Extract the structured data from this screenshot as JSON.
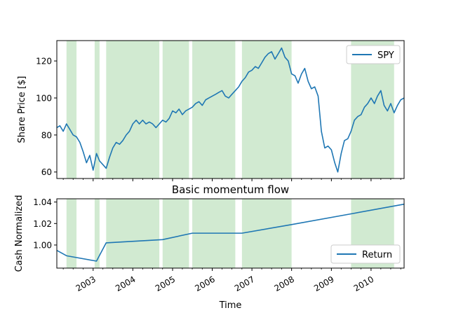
{
  "chart_data": [
    {
      "type": "line",
      "title": "",
      "xlabel": "",
      "ylabel": "Share Price [$]",
      "xlim": [
        "2002-02-01",
        "2010-11-01"
      ],
      "ylim": [
        56.5,
        131
      ],
      "yticks": [
        60,
        80,
        100,
        120
      ],
      "grid": false,
      "legend_position": "top-right",
      "shaded_regions": [
        [
          "2002-05-01",
          "2002-08-01"
        ],
        [
          "2003-01-15",
          "2003-03-01"
        ],
        [
          "2003-05-01",
          "2004-09-01"
        ],
        [
          "2004-10-01",
          "2005-06-01"
        ],
        [
          "2005-07-01",
          "2006-08-01"
        ],
        [
          "2006-10-01",
          "2008-01-01"
        ],
        [
          "2009-07-01",
          "2010-08-01"
        ]
      ],
      "series": [
        {
          "name": "SPY",
          "color": "#1f77b4",
          "points": [
            [
              "2002-02-01",
              84
            ],
            [
              "2002-03-01",
              85
            ],
            [
              "2002-04-01",
              82
            ],
            [
              "2002-05-01",
              86
            ],
            [
              "2002-06-01",
              83
            ],
            [
              "2002-07-01",
              80
            ],
            [
              "2002-08-01",
              79
            ],
            [
              "2002-09-01",
              76
            ],
            [
              "2002-10-01",
              71
            ],
            [
              "2002-11-01",
              65
            ],
            [
              "2002-12-01",
              69
            ],
            [
              "2003-01-01",
              61
            ],
            [
              "2003-02-01",
              70
            ],
            [
              "2003-03-01",
              66
            ],
            [
              "2003-04-01",
              64
            ],
            [
              "2003-05-01",
              62
            ],
            [
              "2003-06-01",
              68
            ],
            [
              "2003-07-01",
              73
            ],
            [
              "2003-08-01",
              76
            ],
            [
              "2003-09-01",
              75
            ],
            [
              "2003-10-01",
              77
            ],
            [
              "2003-11-01",
              80
            ],
            [
              "2003-12-01",
              82
            ],
            [
              "2004-01-01",
              86
            ],
            [
              "2004-02-01",
              88
            ],
            [
              "2004-03-01",
              86
            ],
            [
              "2004-04-01",
              88
            ],
            [
              "2004-05-01",
              86
            ],
            [
              "2004-06-01",
              87
            ],
            [
              "2004-07-01",
              86
            ],
            [
              "2004-08-01",
              84
            ],
            [
              "2004-09-01",
              86
            ],
            [
              "2004-10-01",
              88
            ],
            [
              "2004-11-01",
              87
            ],
            [
              "2004-12-01",
              89
            ],
            [
              "2005-01-01",
              93
            ],
            [
              "2005-02-01",
              92
            ],
            [
              "2005-03-01",
              94
            ],
            [
              "2005-04-01",
              91
            ],
            [
              "2005-05-01",
              93
            ],
            [
              "2005-06-01",
              94
            ],
            [
              "2005-07-01",
              95
            ],
            [
              "2005-08-01",
              97
            ],
            [
              "2005-09-01",
              98
            ],
            [
              "2005-10-01",
              96
            ],
            [
              "2005-11-01",
              99
            ],
            [
              "2005-12-01",
              100
            ],
            [
              "2006-01-01",
              101
            ],
            [
              "2006-02-01",
              102
            ],
            [
              "2006-03-01",
              103
            ],
            [
              "2006-04-01",
              104
            ],
            [
              "2006-05-01",
              101
            ],
            [
              "2006-06-01",
              100
            ],
            [
              "2006-07-01",
              102
            ],
            [
              "2006-08-01",
              104
            ],
            [
              "2006-09-01",
              106
            ],
            [
              "2006-10-01",
              109
            ],
            [
              "2006-11-01",
              111
            ],
            [
              "2006-12-01",
              114
            ],
            [
              "2007-01-01",
              115
            ],
            [
              "2007-02-01",
              117
            ],
            [
              "2007-03-01",
              116
            ],
            [
              "2007-04-01",
              119
            ],
            [
              "2007-05-01",
              122
            ],
            [
              "2007-06-01",
              124
            ],
            [
              "2007-07-01",
              125
            ],
            [
              "2007-08-01",
              121
            ],
            [
              "2007-09-01",
              124
            ],
            [
              "2007-10-01",
              127
            ],
            [
              "2007-11-01",
              122
            ],
            [
              "2007-12-01",
              120
            ],
            [
              "2008-01-01",
              113
            ],
            [
              "2008-02-01",
              112
            ],
            [
              "2008-03-01",
              108
            ],
            [
              "2008-04-01",
              113
            ],
            [
              "2008-05-01",
              116
            ],
            [
              "2008-06-01",
              109
            ],
            [
              "2008-07-01",
              105
            ],
            [
              "2008-08-01",
              106
            ],
            [
              "2008-09-01",
              101
            ],
            [
              "2008-10-01",
              82
            ],
            [
              "2008-11-01",
              73
            ],
            [
              "2008-12-01",
              74
            ],
            [
              "2009-01-01",
              72
            ],
            [
              "2009-02-01",
              65
            ],
            [
              "2009-03-01",
              60
            ],
            [
              "2009-04-01",
              70
            ],
            [
              "2009-05-01",
              77
            ],
            [
              "2009-06-01",
              78
            ],
            [
              "2009-07-01",
              82
            ],
            [
              "2009-08-01",
              88
            ],
            [
              "2009-09-01",
              90
            ],
            [
              "2009-10-01",
              91
            ],
            [
              "2009-11-01",
              95
            ],
            [
              "2009-12-01",
              97
            ],
            [
              "2010-01-01",
              100
            ],
            [
              "2010-02-01",
              97
            ],
            [
              "2010-03-01",
              101
            ],
            [
              "2010-04-01",
              104
            ],
            [
              "2010-05-01",
              96
            ],
            [
              "2010-06-01",
              93
            ],
            [
              "2010-07-01",
              97
            ],
            [
              "2010-08-01",
              92
            ],
            [
              "2010-09-01",
              96
            ],
            [
              "2010-10-01",
              99
            ],
            [
              "2010-11-01",
              100
            ]
          ]
        }
      ]
    },
    {
      "type": "line",
      "title": "Basic momentum flow",
      "xlabel": "Time",
      "ylabel": "Cash Normalized",
      "xlim": [
        "2002-02-01",
        "2010-11-01"
      ],
      "ylim": [
        0.9785,
        1.043
      ],
      "yticks": [
        1.0,
        1.02,
        1.04
      ],
      "ytick_labels": [
        "1.00",
        "1.02",
        "1.04"
      ],
      "xticks": [
        "2003-01-01",
        "2004-01-01",
        "2005-01-01",
        "2006-01-01",
        "2007-01-01",
        "2008-01-01",
        "2009-01-01",
        "2010-01-01"
      ],
      "xtick_labels": [
        "2003",
        "2004",
        "2005",
        "2006",
        "2007",
        "2008",
        "2009",
        "2010"
      ],
      "grid": false,
      "legend_position": "bottom-right",
      "shaded_regions": [
        [
          "2002-05-01",
          "2002-08-01"
        ],
        [
          "2003-01-15",
          "2003-03-01"
        ],
        [
          "2003-05-01",
          "2004-09-01"
        ],
        [
          "2004-10-01",
          "2005-06-01"
        ],
        [
          "2005-07-01",
          "2006-08-01"
        ],
        [
          "2006-10-01",
          "2008-01-01"
        ],
        [
          "2009-07-01",
          "2010-08-01"
        ]
      ],
      "series": [
        {
          "name": "Return",
          "color": "#1f77b4",
          "points": [
            [
              "2002-02-01",
              0.995
            ],
            [
              "2002-05-01",
              0.99
            ],
            [
              "2003-02-01",
              0.985
            ],
            [
              "2003-05-01",
              1.002
            ],
            [
              "2004-10-01",
              1.005
            ],
            [
              "2005-07-01",
              1.011
            ],
            [
              "2006-10-01",
              1.011
            ],
            [
              "2008-01-01",
              1.019
            ],
            [
              "2009-07-01",
              1.029
            ],
            [
              "2010-11-01",
              1.038
            ]
          ]
        }
      ]
    }
  ]
}
